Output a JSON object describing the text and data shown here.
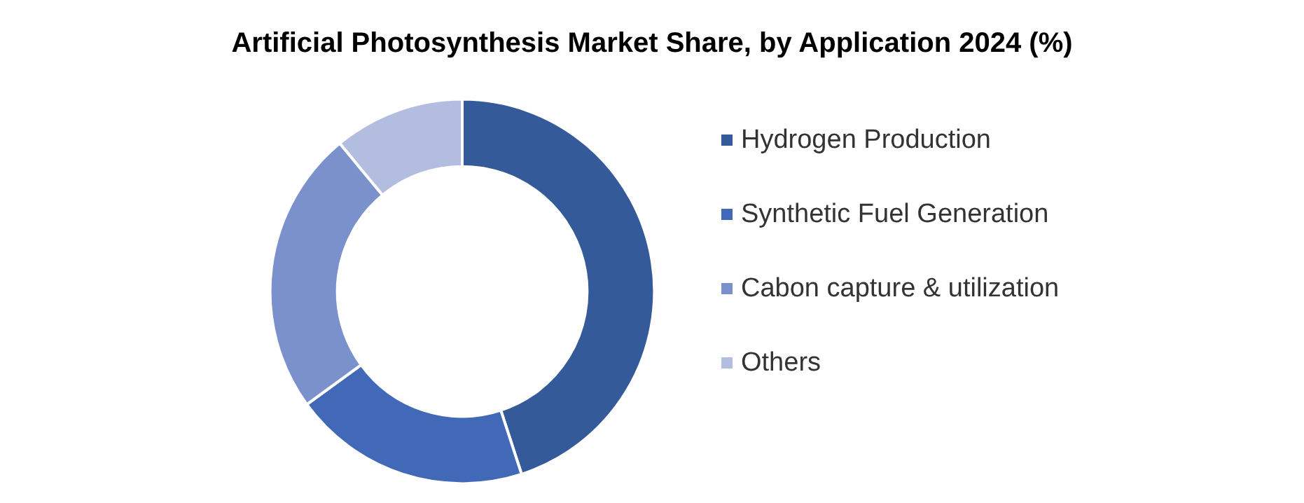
{
  "chart_data": {
    "type": "donut",
    "title": "Artificial Photosynthesis Market Share, by Application 2024 (%)",
    "categories": [
      "Hydrogen Production",
      "Synthetic Fuel Generation",
      "Cabon capture & utilization",
      "Others"
    ],
    "values": [
      45,
      20,
      24,
      11
    ],
    "colors": [
      "#345a9a",
      "#4169b8",
      "#7a91cc",
      "#b3bde0"
    ],
    "legend": "right"
  }
}
